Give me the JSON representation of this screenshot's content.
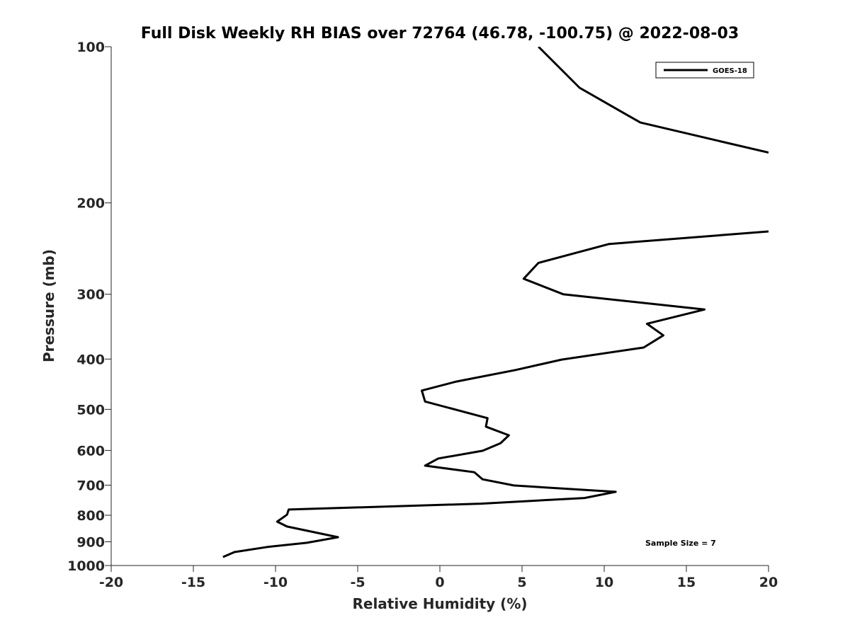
{
  "chart_data": {
    "type": "line",
    "title": "Full Disk Weekly RH BIAS over 72764 (46.78, -100.75) @ 2022-08-03",
    "xlabel": "Relative Humidity (%)",
    "ylabel": "Pressure (mb)",
    "xlim": [
      -20,
      20
    ],
    "ylim": [
      100,
      1000
    ],
    "yscale": "log",
    "y_reversed": true,
    "grid": false,
    "xticks": [
      "-20",
      "-15",
      "-10",
      "-5",
      "0",
      "5",
      "10",
      "15",
      "20"
    ],
    "yticks": [
      "100",
      "200",
      "300",
      "400",
      "500",
      "600",
      "700",
      "800",
      "900",
      "1000"
    ],
    "legend": {
      "placement": "top-right",
      "entries": [
        "GOES-18"
      ]
    },
    "annotation": "Sample Size = 7",
    "series": [
      {
        "name": "GOES-18",
        "color": "#000000",
        "segments": [
          [
            [
              6.0,
              100
            ],
            [
              8.5,
              120
            ],
            [
              12.2,
              140
            ],
            [
              20,
              160
            ]
          ],
          [
            [
              20,
              227
            ],
            [
              10.3,
              240
            ],
            [
              6.0,
              261
            ],
            [
              5.1,
              280
            ],
            [
              7.5,
              300
            ],
            [
              16.1,
              321
            ],
            [
              12.6,
              342
            ],
            [
              13.6,
              360
            ],
            [
              12.4,
              380
            ],
            [
              7.4,
              401
            ],
            [
              4.6,
              420
            ],
            [
              1.0,
              442
            ],
            [
              -1.1,
              460
            ],
            [
              -0.9,
              483
            ],
            [
              2.9,
              520
            ],
            [
              2.8,
              540
            ],
            [
              4.2,
              561
            ],
            [
              3.7,
              581
            ],
            [
              2.6,
              601
            ],
            [
              -0.1,
              622
            ],
            [
              -0.9,
              642
            ],
            [
              2.1,
              661
            ],
            [
              2.6,
              682
            ],
            [
              4.5,
              701
            ],
            [
              10.7,
              721
            ],
            [
              8.8,
              741
            ],
            [
              2.5,
              760
            ],
            [
              -9.2,
              780
            ],
            [
              -9.3,
              798
            ],
            [
              -9.9,
              823
            ],
            [
              -9.3,
              841
            ],
            [
              -6.2,
              882
            ],
            [
              -8.1,
              904
            ],
            [
              -10.5,
              921
            ],
            [
              -12.5,
              942
            ],
            [
              -13.2,
              963
            ]
          ]
        ]
      }
    ]
  }
}
